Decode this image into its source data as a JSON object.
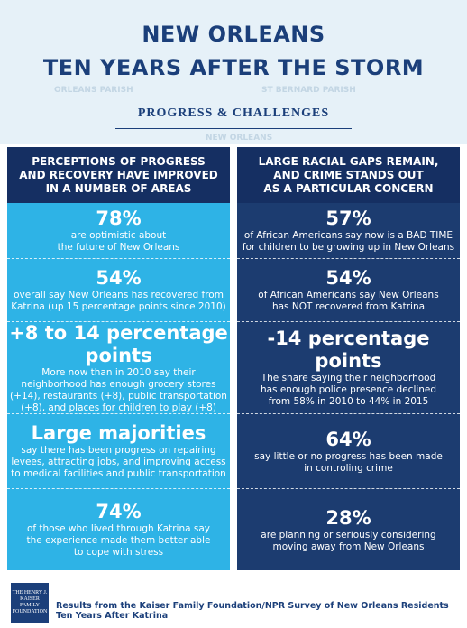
{
  "header": {
    "title_lines": [
      "NEW ORLEANS",
      "TEN YEARS AFTER THE STORM"
    ],
    "subtitle": "PROGRESS & CHALLENGES",
    "map_labels": [
      "ORLEANS PARISH",
      "ST BERNARD PARISH",
      "NEW ORLEANS"
    ]
  },
  "columns": [
    {
      "heading_lines": [
        "PERCEPTIONS OF PROGRESS",
        "AND RECOVERY HAVE IMPROVED",
        "IN A NUMBER OF AREAS"
      ],
      "cells": [
        {
          "stat": "78%",
          "lines": [
            "are optimistic about",
            "the future of New Orleans"
          ]
        },
        {
          "stat": "54%",
          "lines": [
            "overall say New Orleans has recovered from",
            "Katrina (up 15 percentage points since 2010)"
          ]
        },
        {
          "stat": "+8 to 14 percentage points",
          "lines": [
            "More now than in 2010 say their",
            "neighborhood has enough grocery stores",
            "(+14), restaurants (+8), public transportation",
            "(+8), and places for children to play (+8)"
          ]
        },
        {
          "stat": "Large majorities",
          "lines": [
            "say there has been progress on repairing",
            "levees, attracting jobs, and improving access",
            "to medical facilities and public transportation"
          ]
        },
        {
          "stat": "74%",
          "lines": [
            "of those who lived through Katrina say",
            "the experience made them better able",
            "to cope with stress"
          ]
        }
      ]
    },
    {
      "heading_lines": [
        "LARGE RACIAL GAPS REMAIN,",
        "AND CRIME STANDS OUT",
        "AS A PARTICULAR CONCERN"
      ],
      "cells": [
        {
          "stat": "57%",
          "lines": [
            "of African Americans say now is a BAD TIME",
            "for children to be growing up in New Orleans"
          ]
        },
        {
          "stat": "54%",
          "lines": [
            "of African Americans say New Orleans",
            "has NOT recovered from Katrina"
          ]
        },
        {
          "stat": "-14 percentage points",
          "lines": [
            "The share saying their neighborhood",
            "has enough police presence declined",
            "from 58% in 2010 to 44% in 2015"
          ]
        },
        {
          "stat": "64%",
          "lines": [
            "say little or no progress has been made",
            "in controling crime"
          ]
        },
        {
          "stat": "28%",
          "lines": [
            "are planning or seriously considering",
            "moving away from New Orleans"
          ]
        }
      ]
    }
  ],
  "footer": {
    "logo_lines": [
      "THE HENRY J.",
      "KAISER",
      "FAMILY",
      "FOUNDATION"
    ],
    "note": "Results from the Kaiser Family Foundation/NPR Survey of New Orleans Residents Ten Years After Katrina"
  }
}
